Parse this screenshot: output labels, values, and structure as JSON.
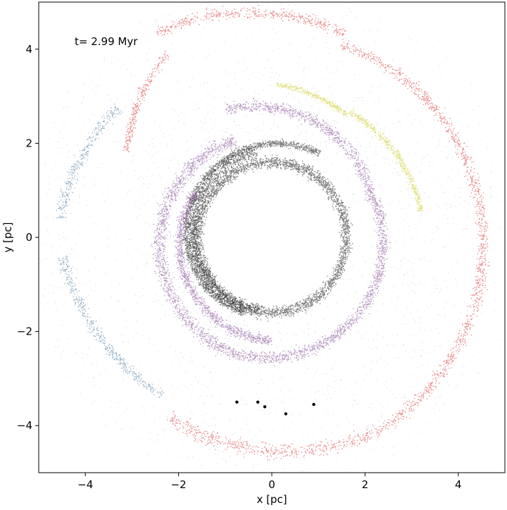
{
  "chart_data": {
    "type": "scatter",
    "title": "",
    "annotation": "t= 2.99 Myr",
    "xlabel": "x [pc]",
    "ylabel": "y [pc]",
    "xlim": [
      -5,
      5
    ],
    "ylim": [
      -5,
      5
    ],
    "xticks": [
      -4,
      -2,
      0,
      2,
      4
    ],
    "yticks": [
      -4,
      -2,
      0,
      2,
      4
    ],
    "xtick_labels": [
      "−4",
      "−2",
      "0",
      "2",
      "4"
    ],
    "ytick_labels": [
      "−4",
      "−2",
      "0",
      "2",
      "4"
    ],
    "grid": false,
    "legend": "none",
    "inner_hole_radius_pc": 1.5,
    "series": [
      {
        "name": "background-gas",
        "color": "#000000",
        "description_kind": "diffuse",
        "r_range": [
          1.5,
          5.2
        ],
        "point_count": 14000
      },
      {
        "name": "inner-black-ring",
        "color": "#111111",
        "arcs": [
          {
            "r0": 1.6,
            "r1": 1.6,
            "theta0": 0,
            "theta1": 360,
            "width": 0.12
          },
          {
            "r0": 1.85,
            "r1": 1.55,
            "theta0": 100,
            "theta1": 260,
            "width": 0.12
          },
          {
            "r0": 2.05,
            "r1": 1.7,
            "theta0": 60,
            "theta1": 250,
            "width": 0.08
          }
        ]
      },
      {
        "name": "purple-arm",
        "color": "#7b3f8f",
        "arcs": [
          {
            "r0": 2.3,
            "r1": 2.9,
            "theta0": 20,
            "theta1": 110,
            "width": 0.12
          },
          {
            "r0": 2.2,
            "r1": 2.6,
            "theta0": 110,
            "theta1": 250,
            "width": 0.14
          },
          {
            "r0": 2.6,
            "r1": 2.45,
            "theta0": 250,
            "theta1": 330,
            "width": 0.12
          },
          {
            "r0": 2.45,
            "r1": 2.35,
            "theta0": -30,
            "theta1": 20,
            "width": 0.12
          },
          {
            "r0": 1.9,
            "r1": 2.2,
            "theta0": 150,
            "theta1": 270,
            "width": 0.1
          }
        ]
      },
      {
        "name": "yellow-arm",
        "color": "#c2c200",
        "arcs": [
          {
            "r0": 3.05,
            "r1": 3.25,
            "theta0": 58,
            "theta1": 88,
            "width": 0.06
          },
          {
            "r0": 3.25,
            "r1": 3.15,
            "theta0": 10,
            "theta1": 58,
            "width": 0.07
          }
        ]
      },
      {
        "name": "red-arm",
        "color": "#d61f1f",
        "arcs": [
          {
            "r0": 4.6,
            "r1": 5.0,
            "theta0": 70,
            "theta1": 120,
            "width": 0.12
          },
          {
            "r0": 4.7,
            "r1": 4.35,
            "theta0": -60,
            "theta1": 70,
            "width": 0.12
          },
          {
            "r0": 4.4,
            "r1": 4.7,
            "theta0": -120,
            "theta1": -60,
            "width": 0.16
          },
          {
            "r0": 4.5,
            "r1": 3.6,
            "theta0": 120,
            "theta1": 150,
            "width": 0.1
          }
        ]
      },
      {
        "name": "blue-arm",
        "color": "#3b6e96",
        "arcs": [
          {
            "r0": 4.3,
            "r1": 4.55,
            "theta0": 140,
            "theta1": 175,
            "width": 0.12
          },
          {
            "r0": 4.5,
            "r1": 4.2,
            "theta0": 185,
            "theta1": 215,
            "width": 0.12
          },
          {
            "r0": 4.2,
            "r1": 4.1,
            "theta0": 215,
            "theta1": 235,
            "width": 0.1
          }
        ]
      },
      {
        "name": "clumps",
        "color": "#000000",
        "points": [
          {
            "x": -0.75,
            "y": -3.5
          },
          {
            "x": -0.3,
            "y": -3.5
          },
          {
            "x": -0.15,
            "y": -3.6
          },
          {
            "x": 0.3,
            "y": -3.75
          },
          {
            "x": 0.9,
            "y": -3.55
          }
        ]
      }
    ]
  }
}
